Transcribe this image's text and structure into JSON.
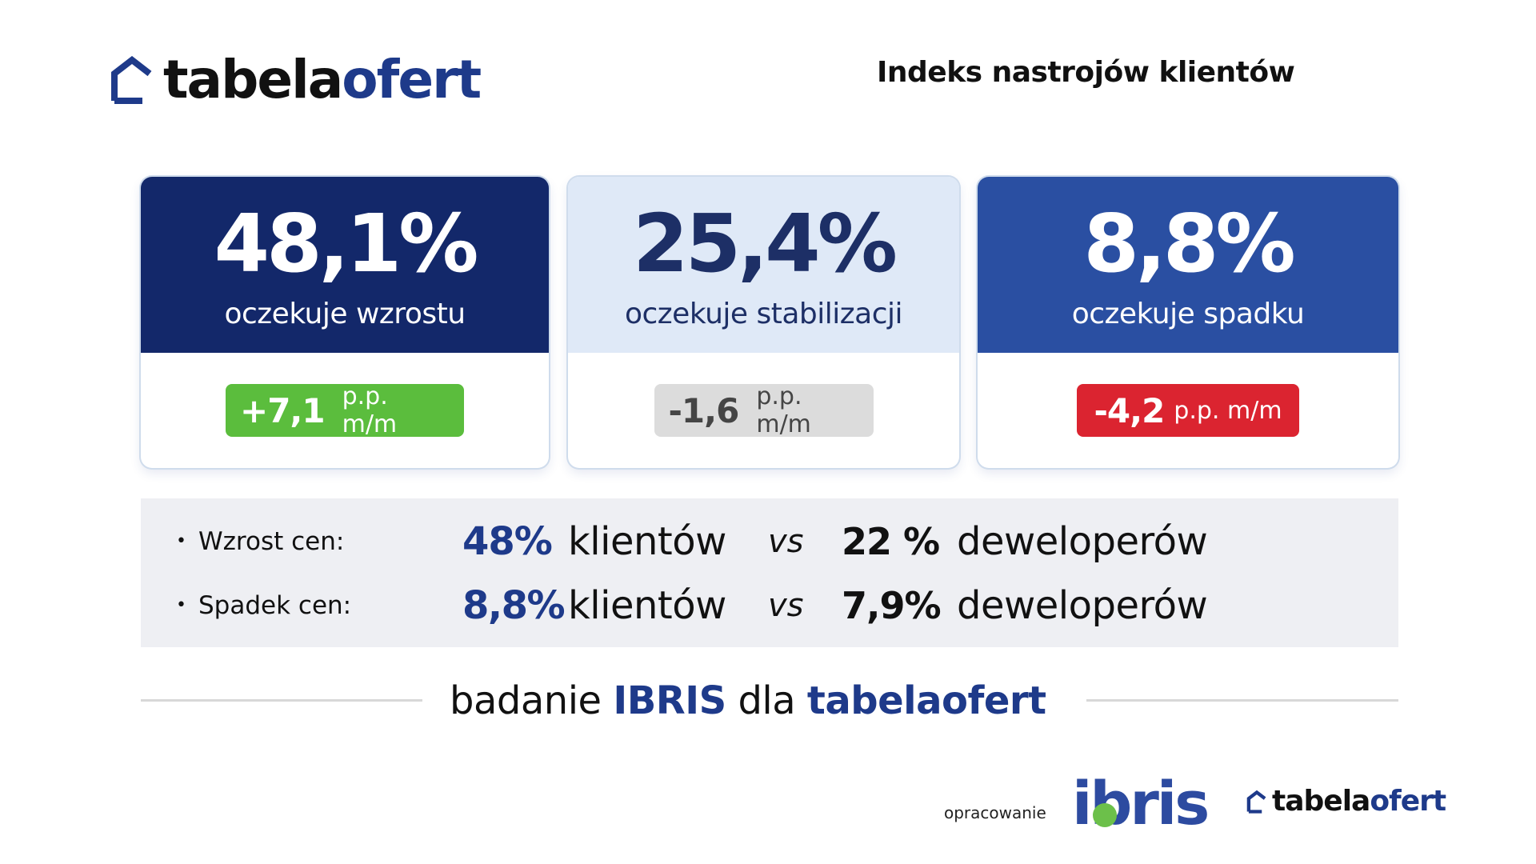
{
  "header": {
    "logo": {
      "part1": "tabela",
      "part2": "ofert"
    },
    "title": "Indeks nastrojów klientów"
  },
  "cards": [
    {
      "value": "48,1%",
      "label": "oczekuje wzrostu",
      "change": "+7,1",
      "unit": "p.p. m/m"
    },
    {
      "value": "25,4%",
      "label": "oczekuje stabilizacji",
      "change": "-1,6",
      "unit": "p.p. m/m"
    },
    {
      "value": "8,8%",
      "label": "oczekuje spadku",
      "change": "-4,2",
      "unit": "p.p. m/m"
    }
  ],
  "comparison": [
    {
      "bullet": "•",
      "label": "Wzrost cen:",
      "clients_pct": "48%",
      "clients": "klientów",
      "vs": "vs",
      "dev_pct": "22 %",
      "devs": "deweloperów"
    },
    {
      "bullet": "•",
      "label": "Spadek cen:",
      "clients_pct": "8,8%",
      "clients": "klientów",
      "vs": "vs",
      "dev_pct": "7,9%",
      "devs": "deweloperów"
    }
  ],
  "source": {
    "prefix": "badanie",
    "org": "IBRIS",
    "mid": "dla",
    "brand": "tabelaofert"
  },
  "footer": {
    "credit": "opracowanie",
    "ibris_logo": "ibris",
    "logo": {
      "part1": "tabela",
      "part2": "ofert"
    }
  },
  "colors": {
    "navy": "#13286a",
    "light_blue": "#dfe9f7",
    "blue": "#2a4fa2",
    "green": "#5bbd3d",
    "grey": "#dcdcdc",
    "red": "#db2430",
    "brand_blue": "#1e3a8a"
  }
}
